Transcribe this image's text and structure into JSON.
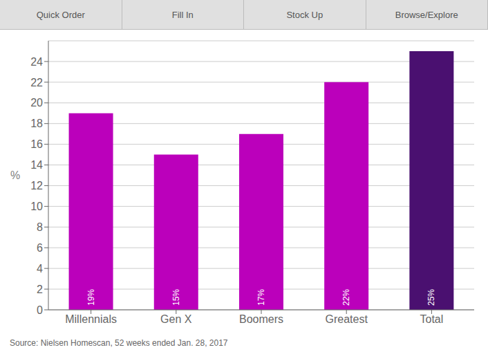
{
  "chart_data": {
    "type": "bar",
    "categories": [
      "Millennials",
      "Gen X",
      "Boomers",
      "Greatest",
      "Total"
    ],
    "values": [
      19,
      15,
      17,
      22,
      25
    ],
    "value_labels": [
      "19%",
      "15%",
      "17%",
      "22%",
      "25%"
    ],
    "colors": [
      "#bb00bb",
      "#bb00bb",
      "#bb00bb",
      "#bb00bb",
      "#4a1070"
    ],
    "ylabel": "%",
    "ylim": [
      0,
      26
    ],
    "yticks": [
      0,
      2,
      4,
      6,
      8,
      10,
      12,
      14,
      16,
      18,
      20,
      22,
      24
    ],
    "grid": true,
    "data_labels": true,
    "annotations": [
      "Quick Order",
      "Fill In",
      "Stock Up",
      "Browse/Explore",
      "Source: Nielsen Homescan, 52 weeks ended Jan. 28, 2017"
    ]
  }
}
